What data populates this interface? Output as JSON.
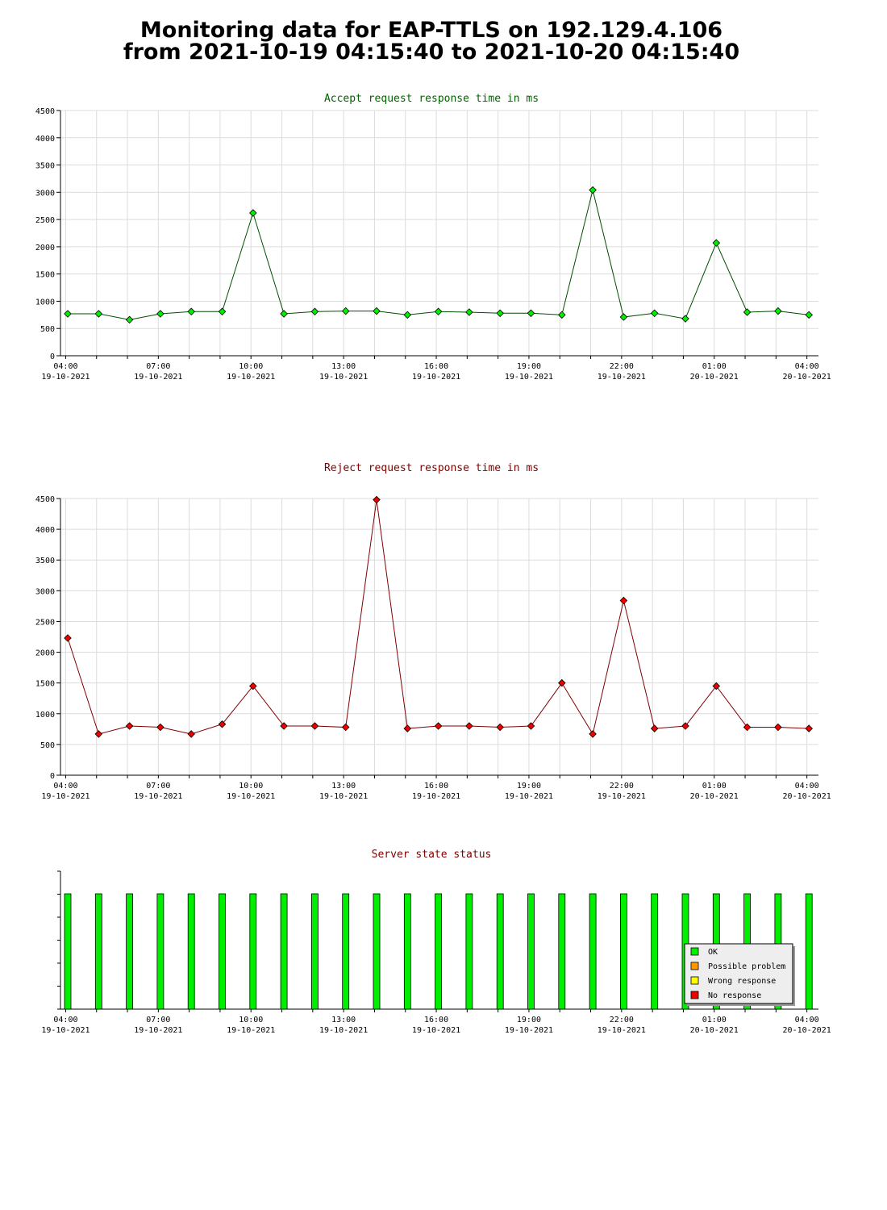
{
  "title": {
    "line1": "Monitoring data for EAP-TTLS on 192.129.4.106",
    "line2": "from 2021-10-19 04:15:40 to 2021-10-20 04:15:40"
  },
  "x_ticks": [
    {
      "time": "04:00",
      "date": "19-10-2021",
      "hours": 0
    },
    {
      "time": "07:00",
      "date": "19-10-2021",
      "hours": 3
    },
    {
      "time": "10:00",
      "date": "19-10-2021",
      "hours": 6
    },
    {
      "time": "13:00",
      "date": "19-10-2021",
      "hours": 9
    },
    {
      "time": "16:00",
      "date": "19-10-2021",
      "hours": 12
    },
    {
      "time": "19:00",
      "date": "19-10-2021",
      "hours": 15
    },
    {
      "time": "22:00",
      "date": "19-10-2021",
      "hours": 18
    },
    {
      "time": "01:00",
      "date": "20-10-2021",
      "hours": 21
    },
    {
      "time": "04:00",
      "date": "20-10-2021",
      "hours": 24
    }
  ],
  "chart_data": [
    {
      "type": "line",
      "title": "Accept request response time in ms",
      "title_color": "#006400",
      "line_color": "#004d00",
      "marker_color": "#00ee00",
      "ylim": [
        0,
        4500
      ],
      "yticks": [
        0,
        500,
        1000,
        1500,
        2000,
        2500,
        3000,
        3500,
        4000,
        4500
      ],
      "grid": true,
      "x_hours": [
        0,
        1,
        2,
        3,
        4,
        5,
        6,
        7,
        8,
        9,
        10,
        11,
        12,
        13,
        14,
        15,
        16,
        17,
        18,
        19,
        20,
        21,
        22,
        23,
        24
      ],
      "values": [
        770,
        770,
        660,
        770,
        810,
        810,
        2620,
        770,
        810,
        820,
        820,
        750,
        810,
        800,
        780,
        780,
        750,
        3040,
        710,
        780,
        680,
        2070,
        800,
        820,
        750
      ]
    },
    {
      "type": "line",
      "title": "Reject request response time in ms",
      "title_color": "#800000",
      "line_color": "#800000",
      "marker_color": "#ee0000",
      "ylim": [
        0,
        4500
      ],
      "yticks": [
        0,
        500,
        1000,
        1500,
        2000,
        2500,
        3000,
        3500,
        4000,
        4500
      ],
      "grid": true,
      "x_hours": [
        0,
        1,
        2,
        3,
        4,
        5,
        6,
        7,
        8,
        9,
        10,
        11,
        12,
        13,
        14,
        15,
        16,
        17,
        18,
        19,
        20,
        21,
        22,
        23,
        24
      ],
      "values": [
        2230,
        670,
        800,
        780,
        670,
        830,
        1450,
        800,
        800,
        780,
        4480,
        760,
        800,
        800,
        780,
        800,
        1500,
        670,
        2840,
        760,
        800,
        1450,
        780,
        780,
        760
      ]
    },
    {
      "type": "bar",
      "title": "Server state status",
      "title_color": "#800000",
      "bar_color": "#00ee00",
      "grid": false,
      "x_hours": [
        0,
        1,
        2,
        3,
        4,
        5,
        6,
        7,
        8,
        9,
        10,
        11,
        12,
        13,
        14,
        15,
        16,
        17,
        18,
        19,
        20,
        21,
        22,
        23,
        24
      ],
      "states": [
        "OK",
        "OK",
        "OK",
        "OK",
        "OK",
        "OK",
        "OK",
        "OK",
        "OK",
        "OK",
        "OK",
        "OK",
        "OK",
        "OK",
        "OK",
        "OK",
        "OK",
        "OK",
        "OK",
        "OK",
        "OK",
        "OK",
        "OK",
        "OK",
        "OK"
      ],
      "legend_position": "bottom-right",
      "legend": [
        {
          "label": "OK",
          "color": "#00ee00"
        },
        {
          "label": "Possible problem",
          "color": "#ff9900"
        },
        {
          "label": "Wrong response",
          "color": "#ffff00"
        },
        {
          "label": "No response",
          "color": "#ee0000"
        }
      ]
    }
  ]
}
